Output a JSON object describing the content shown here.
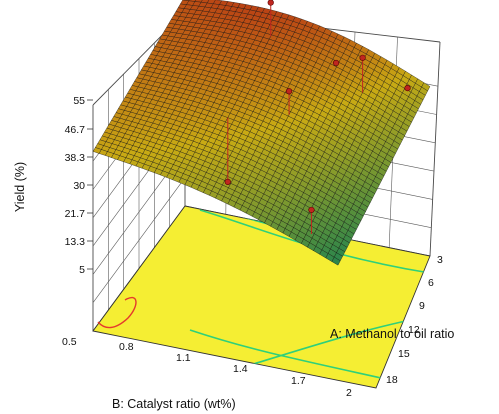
{
  "chart_data": {
    "type": "surface3d",
    "zlabel": "Yield (%)",
    "xlabel": "A: Methanol to oil ratio",
    "ylabel": "B: Catalyst ratio (wt%)",
    "z_ticks": [
      "5",
      "13.3",
      "21.7",
      "30",
      "38.3",
      "46.7",
      "55"
    ],
    "x_ticks": [
      "3",
      "6",
      "9",
      "12",
      "15",
      "18"
    ],
    "y_ticks": [
      "0.5",
      "0.8",
      "1.1",
      "1.4",
      "1.7",
      "2"
    ],
    "xlim": [
      3,
      18
    ],
    "ylim": [
      0.5,
      2
    ],
    "zlim": [
      5,
      55
    ],
    "surface_corners": [
      {
        "methanol_ratio": 18,
        "catalyst": 0.5,
        "yield": 49
      },
      {
        "methanol_ratio": 3,
        "catalyst": 0.5,
        "yield": 37
      },
      {
        "methanol_ratio": 3,
        "catalyst": 2,
        "yield": 21
      },
      {
        "methanol_ratio": 18,
        "catalyst": 2,
        "yield": 40
      }
    ],
    "design_points": [
      {
        "methanol_ratio": 12,
        "catalyst": 0.7,
        "yield": 58
      },
      {
        "methanol_ratio": 6,
        "catalyst": 0.8,
        "yield": 50
      },
      {
        "methanol_ratio": 8,
        "catalyst": 0.7,
        "yield": 44
      },
      {
        "methanol_ratio": 9,
        "catalyst": 1.2,
        "yield": 47
      },
      {
        "methanol_ratio": 4,
        "catalyst": 0.6,
        "yield": 38
      },
      {
        "methanol_ratio": 12,
        "catalyst": 1.4,
        "yield": 22
      },
      {
        "methanol_ratio": 5,
        "catalyst": 1.9,
        "yield": 33
      }
    ],
    "grid": true,
    "colors": {
      "surface_high": "#b01818",
      "surface_mid": "#e6e000",
      "surface_low": "#1f8c5a",
      "floor": "#f5ee33",
      "contour": "#2fd07a",
      "point": "#c0261f"
    }
  }
}
